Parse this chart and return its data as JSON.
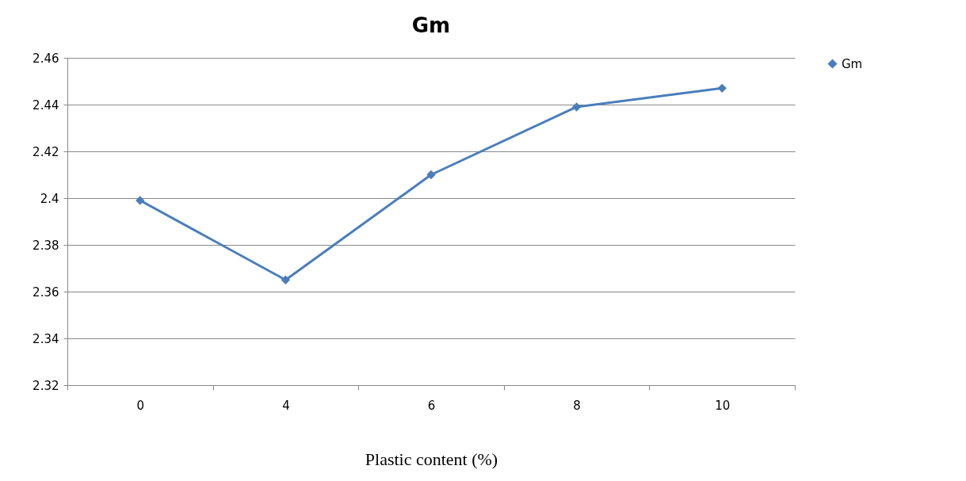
{
  "chart_data": {
    "type": "line",
    "title": "Gm",
    "xlabel": "Plastic content (%)",
    "categories": [
      "0",
      "4",
      "6",
      "8",
      "10"
    ],
    "series": [
      {
        "name": "Gm",
        "color": "#4a7ebb",
        "values": [
          2.399,
          2.365,
          2.41,
          2.439,
          2.447
        ]
      }
    ],
    "ylim": [
      2.32,
      2.46
    ],
    "yticks": [
      2.32,
      2.34,
      2.36,
      2.38,
      2.4,
      2.42,
      2.44,
      2.46
    ],
    "grid": "y",
    "legend": "right",
    "marker": "diamond"
  }
}
